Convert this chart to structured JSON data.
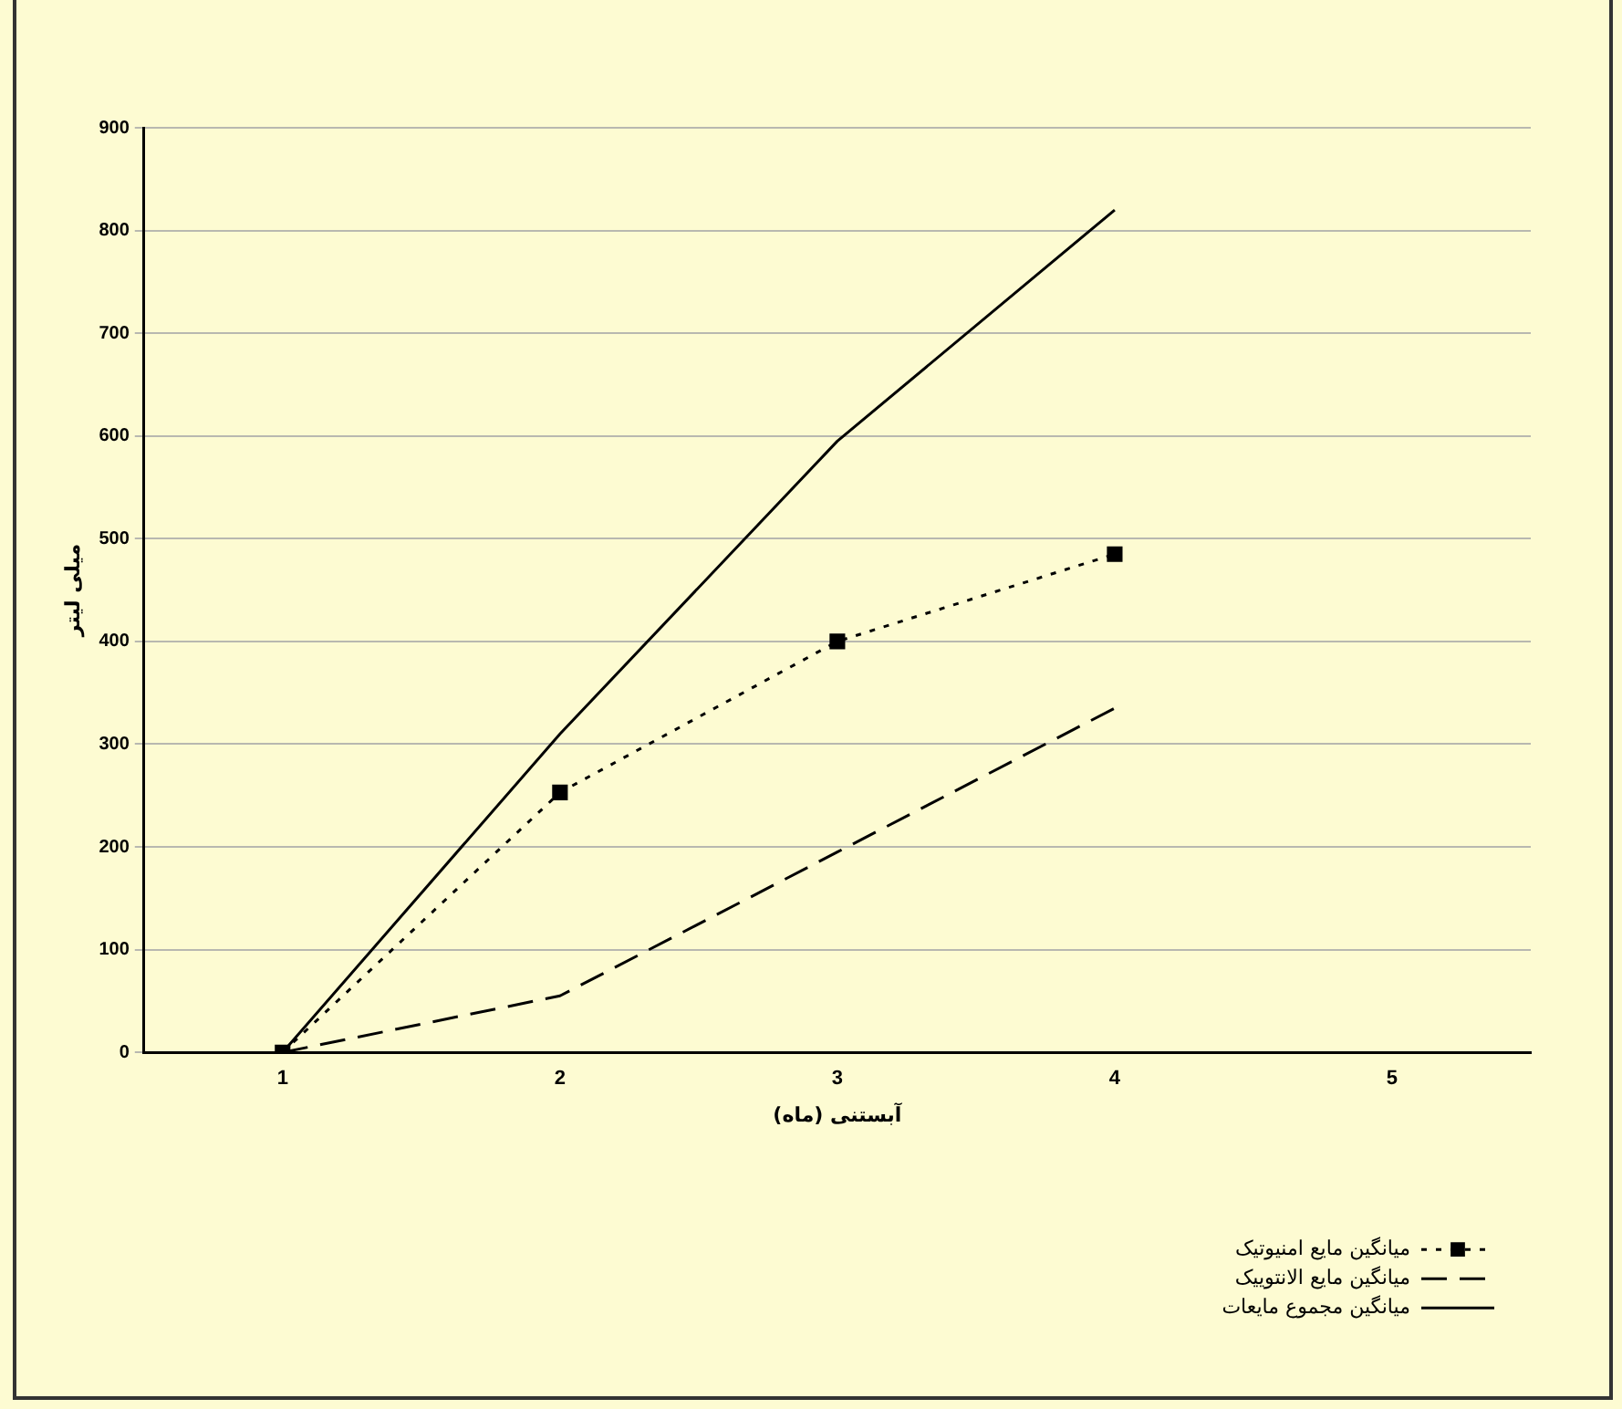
{
  "chart_data": {
    "type": "line",
    "xlabel": "آبستنی (ماه)",
    "ylabel": "میلی لیتر",
    "categories": [
      "1",
      "2",
      "3",
      "4",
      "5"
    ],
    "series": [
      {
        "name": "میانگین مایع امنیوتیک",
        "color": "#000000",
        "values": [
          0,
          253,
          400,
          485,
          null
        ],
        "marker": "square",
        "line_style": "dotted"
      },
      {
        "name": "میانگین مایع الانتوییک",
        "color": "#000000",
        "values": [
          0,
          55,
          195,
          335,
          null
        ],
        "marker": "none",
        "line_style": "dashed"
      },
      {
        "name": "میانگین مجموع مایعات",
        "color": "#000000",
        "values": [
          0,
          310,
          595,
          820,
          null
        ],
        "marker": "none",
        "line_style": "solid"
      }
    ],
    "ylim": [
      0,
      900
    ],
    "yticks": [
      0,
      100,
      200,
      300,
      400,
      500,
      600,
      700,
      800,
      900
    ],
    "grid": "y",
    "legend": "bottom right"
  }
}
